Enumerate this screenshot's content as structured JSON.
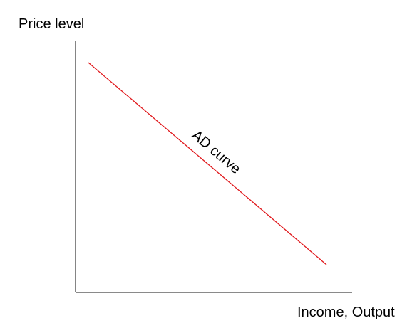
{
  "diagram": {
    "y_axis_label": "Price level",
    "x_axis_label": "Income, Output",
    "curve_label": "AD curve",
    "colors": {
      "axis": "#444444",
      "curve": "#e0191d",
      "text": "#000000"
    }
  }
}
